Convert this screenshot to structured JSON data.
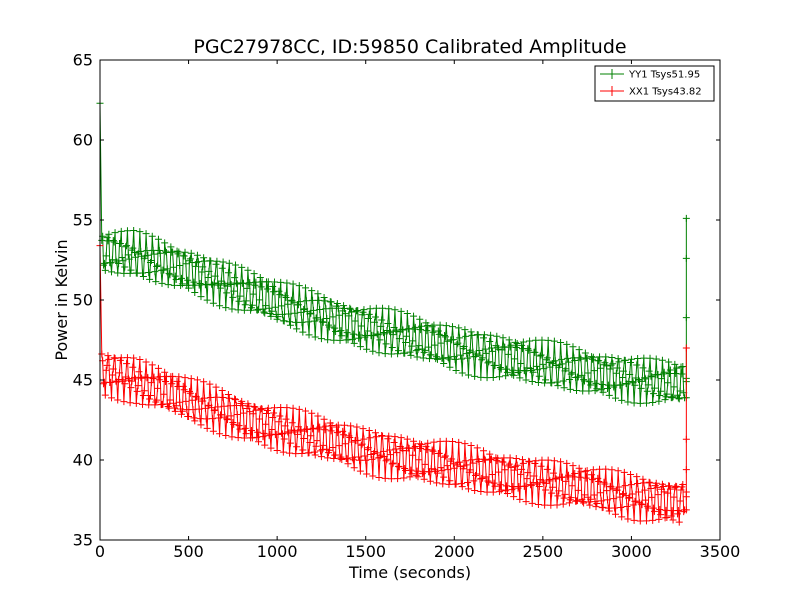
{
  "chart_data": {
    "type": "line",
    "title": "PGC27978CC, ID:59850 Calibrated Amplitude",
    "xlabel": "Time (seconds)",
    "ylabel": "Power in Kelvin",
    "xlim": [
      0,
      3500
    ],
    "ylim": [
      35,
      65
    ],
    "x_ticks": [
      "0",
      "500",
      "1000",
      "1500",
      "2000",
      "2500",
      "3000",
      "3500"
    ],
    "y_ticks": [
      "35",
      "40",
      "45",
      "50",
      "55",
      "60",
      "65"
    ],
    "grid": false,
    "legend_position": "top-right",
    "series": [
      {
        "name": "YY1 Tsys51.95",
        "color": "#008000",
        "trend": [
          [
            0,
            62.3
          ],
          [
            10,
            53.0
          ],
          [
            200,
            52.8
          ],
          [
            500,
            51.9
          ],
          [
            1000,
            49.8
          ],
          [
            1500,
            48.3
          ],
          [
            2000,
            47.0
          ],
          [
            2500,
            46.0
          ],
          [
            3000,
            45.1
          ],
          [
            3300,
            44.7
          ]
        ],
        "spike": {
          "x": 3310,
          "values": [
            55.1,
            52.6,
            48.9,
            45.1,
            44.9
          ]
        }
      },
      {
        "name": "XX1 Tsys43.82",
        "color": "#ff0000",
        "trend": [
          [
            0,
            53.4
          ],
          [
            10,
            45.5
          ],
          [
            200,
            45.0
          ],
          [
            500,
            43.7
          ],
          [
            1000,
            42.0
          ],
          [
            1500,
            40.6
          ],
          [
            2000,
            39.6
          ],
          [
            2500,
            38.7
          ],
          [
            3000,
            37.7
          ],
          [
            3300,
            37.4
          ]
        ],
        "spike": {
          "x": 3310,
          "values": [
            47.0,
            41.3,
            39.4,
            38.0,
            37.7
          ]
        }
      }
    ]
  }
}
